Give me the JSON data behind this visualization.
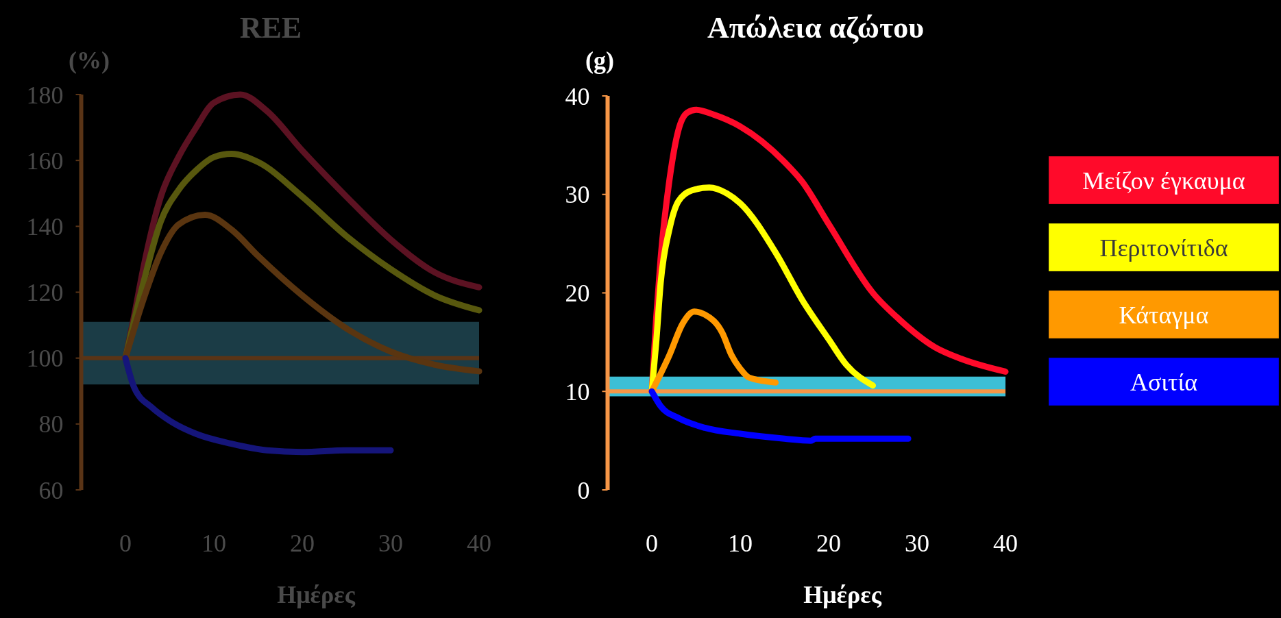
{
  "chart_data": [
    {
      "type": "line",
      "title": "REE",
      "ylabel": "(%)",
      "xlabel": "Ημέρες",
      "xlim": [
        -5,
        40
      ],
      "xticks": [
        0,
        10,
        20,
        30,
        40
      ],
      "ylim": [
        60,
        180
      ],
      "yticks": [
        60,
        80,
        100,
        120,
        140,
        160,
        180
      ],
      "grid": false,
      "legend": false,
      "marker": "none",
      "line_style": "solid",
      "bands": [
        {
          "axis": "y",
          "from": 92,
          "to": 111,
          "color": "#1b3c46"
        }
      ],
      "ref_lines": [
        {
          "axis": "y",
          "value": 100,
          "color": "#5a3416"
        }
      ],
      "series": [
        {
          "color": "#5c1222",
          "x": [
            0,
            1,
            2,
            4,
            6,
            8,
            10,
            13,
            16,
            20,
            25,
            30,
            35,
            40
          ],
          "values": [
            100,
            113,
            127,
            149,
            161,
            170,
            177.5,
            180,
            175,
            163,
            149,
            136,
            126,
            121.5
          ]
        },
        {
          "color": "#58580e",
          "x": [
            0,
            2,
            4,
            6,
            8,
            10,
            12,
            15,
            20,
            25,
            30,
            35,
            40
          ],
          "values": [
            100,
            122.5,
            141.5,
            151,
            157,
            161,
            162,
            159.5,
            149,
            137,
            127,
            119,
            114.5
          ]
        },
        {
          "color": "#5a3510",
          "x": [
            0,
            2,
            4,
            6,
            9,
            12,
            15,
            20,
            25,
            30,
            35,
            40
          ],
          "values": [
            100,
            117.5,
            132,
            140.5,
            143.5,
            139,
            131,
            119,
            109,
            102,
            98,
            96
          ]
        },
        {
          "color": "#15157a",
          "x": [
            0,
            1,
            3,
            5,
            8,
            12,
            16,
            20,
            25,
            30
          ],
          "values": [
            100,
            91,
            85,
            81,
            77,
            74,
            72,
            71.5,
            72,
            72
          ]
        }
      ]
    },
    {
      "type": "line",
      "title": "Απώλεια αζώτου",
      "ylabel": "(g)",
      "xlabel": "Ημέρες",
      "xlim": [
        -5,
        40
      ],
      "xticks": [
        0,
        10,
        20,
        30,
        40
      ],
      "ylim": [
        0,
        40
      ],
      "yticks": [
        0,
        10,
        20,
        30,
        40
      ],
      "grid": false,
      "legend": "right",
      "marker": "none",
      "line_style": "solid",
      "bands": [
        {
          "axis": "y",
          "from": 9.5,
          "to": 11.5,
          "color": "#3cbfd6"
        }
      ],
      "ref_lines": [
        {
          "axis": "y",
          "value": 10,
          "color": "#f79646"
        }
      ],
      "series": [
        {
          "name": "Μείζον έγκαυμα",
          "color": "#ff0a2a",
          "x": [
            0,
            0.5,
            1,
            2,
            3,
            4,
            5,
            7,
            10,
            15,
            17,
            20,
            25,
            28,
            32,
            35,
            40
          ],
          "values": [
            10,
            17.5,
            23.5,
            31.5,
            36.5,
            38.3,
            38.6,
            38.1,
            36.9,
            33.3,
            31.3,
            27,
            20,
            17.3,
            14.5,
            13.3,
            12
          ]
        },
        {
          "name": "Περιτονίτιδα",
          "color": "#ffff00",
          "x": [
            0,
            0.5,
            1,
            2,
            3,
            4.5,
            6.5,
            8.5,
            10,
            14,
            17,
            20,
            22,
            25
          ],
          "values": [
            10,
            15,
            21,
            26.5,
            29.3,
            30.4,
            30.7,
            30.1,
            29.1,
            24.1,
            19.3,
            15.3,
            12.7,
            10.6
          ]
        },
        {
          "name": "Κάταγμα",
          "color": "#ff9900",
          "x": [
            0,
            2,
            3.5,
            4.8,
            6,
            8,
            9,
            10,
            11,
            14
          ],
          "values": [
            10,
            13.7,
            16.9,
            18.1,
            17.8,
            15.9,
            13.7,
            12.3,
            11.4,
            10.9
          ]
        },
        {
          "name": "Ασιτία",
          "color": "#0000ff",
          "x": [
            0,
            1,
            3,
            6,
            10,
            15,
            18,
            18.5,
            25,
            29
          ],
          "values": [
            10,
            8.5,
            7.3,
            6.3,
            5.7,
            5.2,
            5,
            5.2,
            5.2,
            5.2
          ]
        }
      ]
    }
  ]
}
